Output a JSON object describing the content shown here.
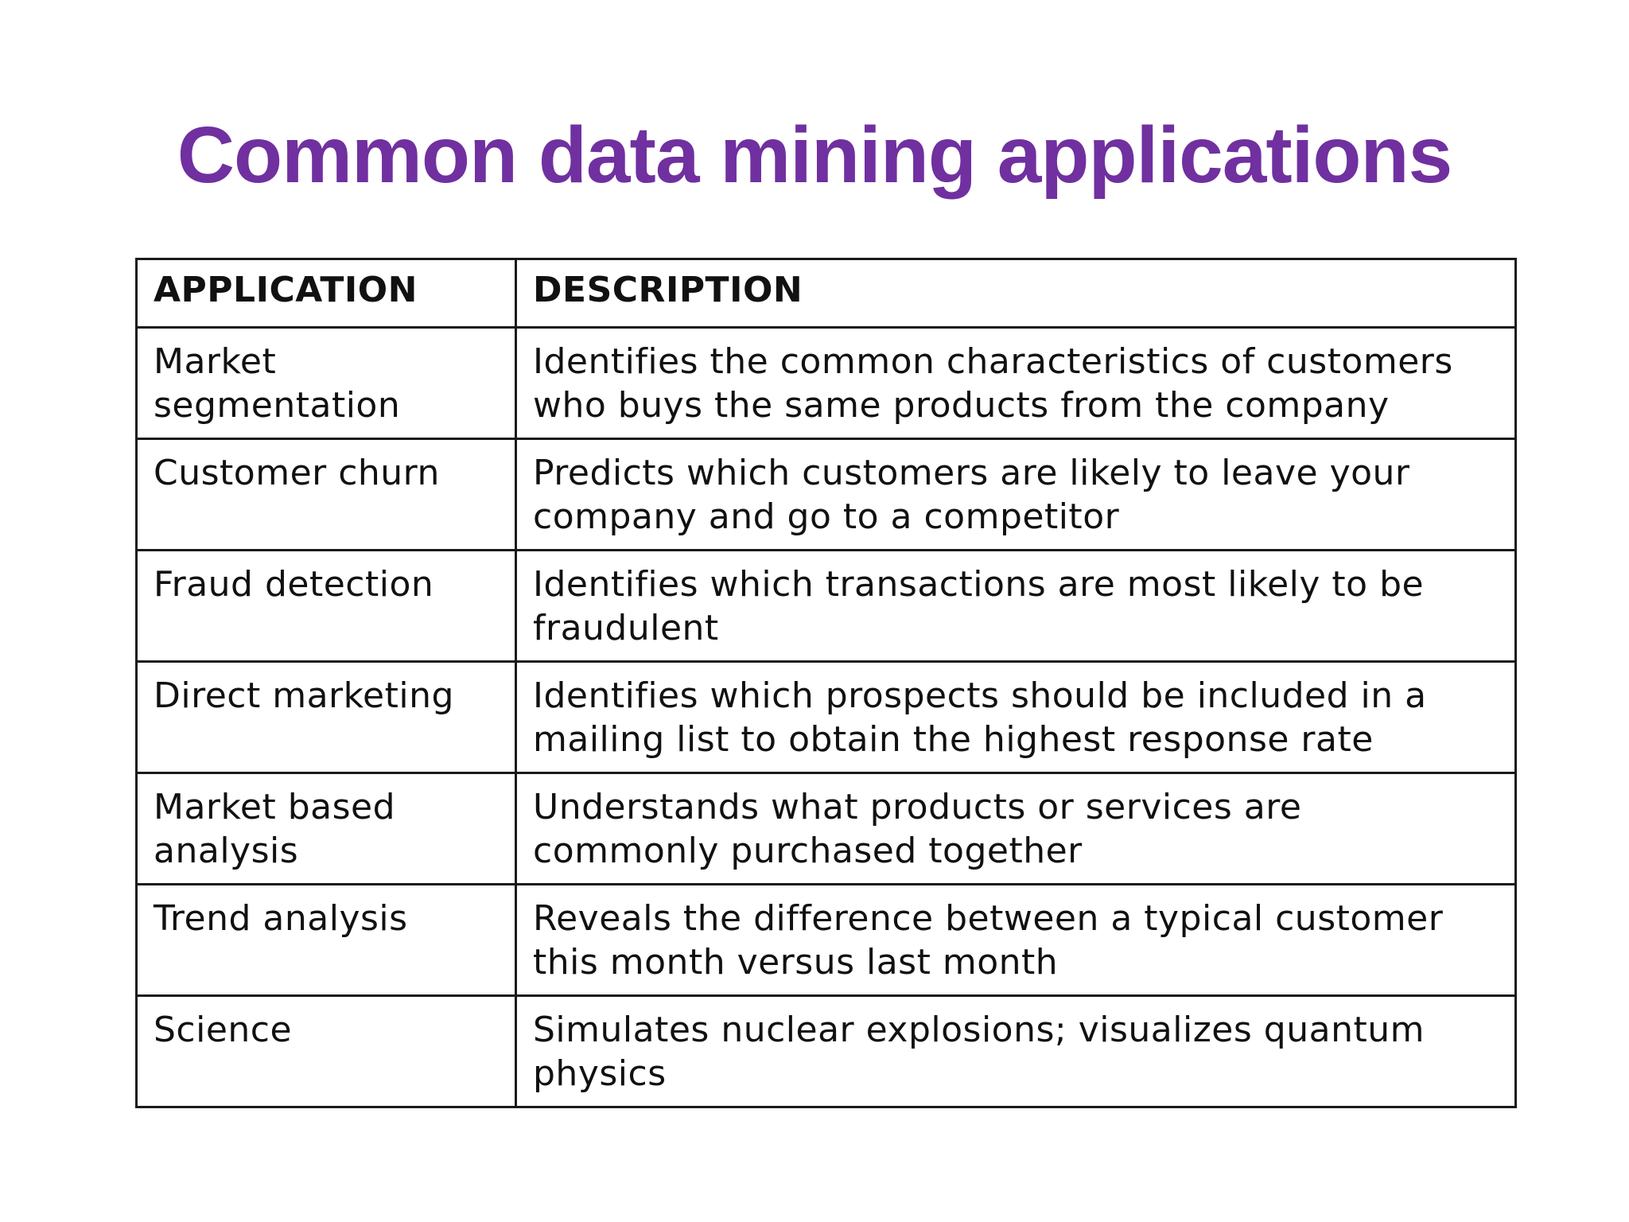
{
  "slide": {
    "title": "Common data mining applications"
  },
  "table": {
    "headers": {
      "application": "APPLICATION",
      "description": "DESCRIPTION"
    },
    "rows": [
      {
        "application": "Market segmentation",
        "description": "Identifies the common characteristics of customers who buys the same products from the company"
      },
      {
        "application": "Customer churn",
        "description": "Predicts which customers are likely to leave your company and go to a competitor"
      },
      {
        "application": "Fraud detection",
        "description": "Identifies which transactions are most likely to be fraudulent"
      },
      {
        "application": "Direct marketing",
        "description": "Identifies which prospects should be included in a mailing list to obtain the highest response rate"
      },
      {
        "application": "Market based analysis",
        "description": "Understands what products or services are commonly purchased together"
      },
      {
        "application": "Trend analysis",
        "description": "Reveals the difference between a typical customer this month versus last month"
      },
      {
        "application": "Science",
        "description": "Simulates nuclear explosions; visualizes quantum physics"
      }
    ]
  },
  "colors": {
    "title": "#7030A0",
    "text": "#111111",
    "border": "#1a1a1a",
    "background": "#ffffff"
  }
}
